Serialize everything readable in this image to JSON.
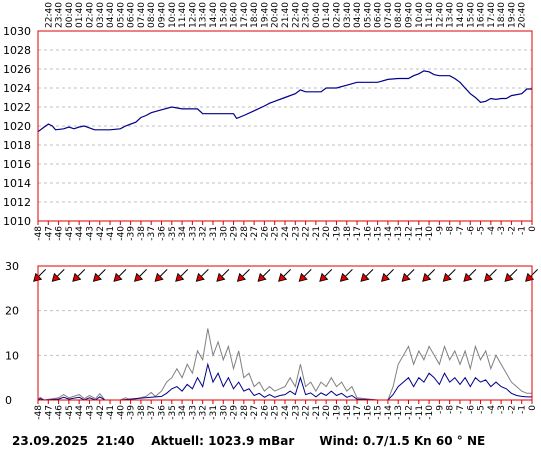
{
  "status": {
    "date": "23.09.2025",
    "time": "21:40",
    "aktuell": "Aktuell: 1023.9 mBar",
    "wind": "Wind: 0.7/1.5 Kn 60 ° NE"
  },
  "colors": {
    "frame": "#dd0000",
    "pressure_line": "#00008b",
    "wind_avg": "#00008b",
    "wind_gust": "#808080",
    "grid": "#c0c0c0",
    "arrow_fill": "#dd0000"
  },
  "chart_data": [
    {
      "type": "line",
      "name": "pressure",
      "ylim": [
        1010,
        1030
      ],
      "yticks": [
        "1030",
        "1028",
        "1026",
        "1024",
        "1022",
        "1020",
        "1018",
        "1016",
        "1014",
        "1012",
        "1010"
      ],
      "grid": true,
      "top_time_labels": [
        "22:40",
        "23:40",
        "00:40",
        "01:40",
        "02:40",
        "03:40",
        "04:40",
        "05:40",
        "06:40",
        "07:40",
        "08:40",
        "09:40",
        "10:40",
        "11:40",
        "12:40",
        "13:40",
        "14:40",
        "15:40",
        "16:40",
        "17:40",
        "18:40",
        "19:40",
        "20:40",
        "21:40",
        "22:40",
        "23:40",
        "00:40",
        "01:40",
        "02:40",
        "03:40",
        "04:40",
        "05:40",
        "06:40",
        "07:40",
        "08:40",
        "09:40",
        "10:40",
        "11:40",
        "12:40",
        "13:40",
        "14:40",
        "15:40",
        "16:40",
        "17:40",
        "18:40",
        "19:40",
        "20:40"
      ],
      "x_hour_labels": [
        "-48",
        "-47",
        "-46",
        "-45",
        "-44",
        "-43",
        "-42",
        "-41",
        "-40",
        "-39",
        "-38",
        "-37",
        "-36",
        "-35",
        "-34",
        "-33",
        "-32",
        "-31",
        "-30",
        "-29",
        "-28",
        "-27",
        "-26",
        "-25",
        "-24",
        "-23",
        "-22",
        "-21",
        "-20",
        "-19",
        "-18",
        "-17",
        "-16",
        "-15",
        "-14",
        "-13",
        "-12",
        "-11",
        "-10",
        "-9",
        "-8",
        "-7",
        "-6",
        "-5",
        "-4",
        "-3",
        "-2",
        "-1",
        "0"
      ],
      "points": [
        [
          -48,
          1019.4
        ],
        [
          -47.5,
          1019.8
        ],
        [
          -47,
          1020.2
        ],
        [
          -46.6,
          1020.0
        ],
        [
          -46.3,
          1019.6
        ],
        [
          -45.5,
          1019.7
        ],
        [
          -45,
          1019.9
        ],
        [
          -44.5,
          1019.7
        ],
        [
          -44,
          1019.9
        ],
        [
          -43.5,
          1020.0
        ],
        [
          -43,
          1019.8
        ],
        [
          -42.5,
          1019.6
        ],
        [
          -41,
          1019.6
        ],
        [
          -40,
          1019.7
        ],
        [
          -39.5,
          1020.0
        ],
        [
          -38.5,
          1020.4
        ],
        [
          -38,
          1020.9
        ],
        [
          -37.5,
          1021.1
        ],
        [
          -37,
          1021.4
        ],
        [
          -36,
          1021.7
        ],
        [
          -35,
          1022.0
        ],
        [
          -34,
          1021.8
        ],
        [
          -33,
          1021.8
        ],
        [
          -32.5,
          1021.8
        ],
        [
          -32,
          1021.3
        ],
        [
          -30,
          1021.3
        ],
        [
          -29,
          1021.3
        ],
        [
          -28.7,
          1020.8
        ],
        [
          -28,
          1021.1
        ],
        [
          -27,
          1021.6
        ],
        [
          -26,
          1022.1
        ],
        [
          -25.5,
          1022.4
        ],
        [
          -25,
          1022.6
        ],
        [
          -24,
          1023.0
        ],
        [
          -23,
          1023.4
        ],
        [
          -22.5,
          1023.8
        ],
        [
          -22,
          1023.6
        ],
        [
          -21,
          1023.6
        ],
        [
          -20.5,
          1023.6
        ],
        [
          -20,
          1024.0
        ],
        [
          -19,
          1024.0
        ],
        [
          -18,
          1024.3
        ],
        [
          -17,
          1024.6
        ],
        [
          -16,
          1024.6
        ],
        [
          -15,
          1024.6
        ],
        [
          -14,
          1024.9
        ],
        [
          -13,
          1025.0
        ],
        [
          -12,
          1025.0
        ],
        [
          -11.5,
          1025.3
        ],
        [
          -11,
          1025.5
        ],
        [
          -10.5,
          1025.8
        ],
        [
          -10,
          1025.7
        ],
        [
          -9.5,
          1025.4
        ],
        [
          -9,
          1025.3
        ],
        [
          -8,
          1025.3
        ],
        [
          -7.5,
          1025.0
        ],
        [
          -7,
          1024.6
        ],
        [
          -6.5,
          1024.0
        ],
        [
          -6,
          1023.4
        ],
        [
          -5.5,
          1023.0
        ],
        [
          -5,
          1022.5
        ],
        [
          -4.5,
          1022.6
        ],
        [
          -4,
          1022.9
        ],
        [
          -3.5,
          1022.8
        ],
        [
          -3,
          1022.9
        ],
        [
          -2.5,
          1022.9
        ],
        [
          -2,
          1023.2
        ],
        [
          -1,
          1023.4
        ],
        [
          -0.5,
          1023.9
        ],
        [
          0,
          1023.9
        ]
      ]
    },
    {
      "type": "line",
      "name": "wind",
      "ylim": [
        0,
        30
      ],
      "yticks": [
        "30",
        "20",
        "10",
        "0"
      ],
      "grid": true,
      "x_hour_labels": [
        "-48",
        "-47",
        "-46",
        "-45",
        "-44",
        "-43",
        "-42",
        "-41",
        "-40",
        "-39",
        "-38",
        "-37",
        "-36",
        "-35",
        "-34",
        "-33",
        "-32",
        "-31",
        "-30",
        "-29",
        "-28",
        "-27",
        "-26",
        "-25",
        "-24",
        "-23",
        "-22",
        "-21",
        "-20",
        "-19",
        "-18",
        "-17",
        "-16",
        "-15",
        "-14",
        "-13",
        "-12",
        "-11",
        "-10",
        "-9",
        "-8",
        "-7",
        "-6",
        "-5",
        "-4",
        "-3",
        "-2",
        "-1",
        "0"
      ],
      "gust": [
        [
          -48,
          0
        ],
        [
          -47.8,
          0.6
        ],
        [
          -47.4,
          0
        ],
        [
          -46,
          0.5
        ],
        [
          -45.5,
          1.2
        ],
        [
          -45,
          0.5
        ],
        [
          -44,
          1.2
        ],
        [
          -43.5,
          0.3
        ],
        [
          -43,
          1
        ],
        [
          -42.4,
          0.3
        ],
        [
          -42,
          1.4
        ],
        [
          -41.5,
          0
        ],
        [
          -40,
          0
        ],
        [
          -39.5,
          0.5
        ],
        [
          -39,
          0
        ],
        [
          -37.5,
          0.8
        ],
        [
          -37,
          1.7
        ],
        [
          -36.6,
          0.8
        ],
        [
          -36,
          2
        ],
        [
          -35.5,
          4
        ],
        [
          -35,
          5
        ],
        [
          -34.5,
          7
        ],
        [
          -34,
          5
        ],
        [
          -33.5,
          8
        ],
        [
          -33,
          6
        ],
        [
          -32.5,
          11
        ],
        [
          -32,
          9
        ],
        [
          -31.5,
          16
        ],
        [
          -31,
          10
        ],
        [
          -30.5,
          13
        ],
        [
          -30,
          9
        ],
        [
          -29.5,
          12
        ],
        [
          -29,
          7
        ],
        [
          -28.5,
          11
        ],
        [
          -28,
          5
        ],
        [
          -27.5,
          6
        ],
        [
          -27,
          3
        ],
        [
          -26.5,
          4
        ],
        [
          -26,
          2
        ],
        [
          -25.5,
          3
        ],
        [
          -25,
          2
        ],
        [
          -24.5,
          2.5
        ],
        [
          -24,
          3
        ],
        [
          -23.5,
          5
        ],
        [
          -23,
          3
        ],
        [
          -22.5,
          8
        ],
        [
          -22,
          3
        ],
        [
          -21.5,
          4
        ],
        [
          -21,
          2
        ],
        [
          -20.5,
          4
        ],
        [
          -20,
          3
        ],
        [
          -19.5,
          5
        ],
        [
          -19,
          3
        ],
        [
          -18.5,
          4
        ],
        [
          -18,
          2
        ],
        [
          -17.5,
          3
        ],
        [
          -17,
          0.5
        ],
        [
          -15,
          0
        ],
        [
          -14,
          0
        ],
        [
          -13.5,
          3
        ],
        [
          -13,
          8
        ],
        [
          -12.5,
          10
        ],
        [
          -12,
          12
        ],
        [
          -11.5,
          8
        ],
        [
          -11,
          11
        ],
        [
          -10.5,
          9
        ],
        [
          -10,
          12
        ],
        [
          -9.5,
          10
        ],
        [
          -9,
          8
        ],
        [
          -8.5,
          12
        ],
        [
          -8,
          9
        ],
        [
          -7.5,
          11
        ],
        [
          -7,
          8
        ],
        [
          -6.5,
          11
        ],
        [
          -6,
          7
        ],
        [
          -5.5,
          12
        ],
        [
          -5,
          9
        ],
        [
          -4.5,
          11
        ],
        [
          -4,
          7
        ],
        [
          -3.5,
          10
        ],
        [
          -3,
          8
        ],
        [
          -2.5,
          6
        ],
        [
          -2,
          4
        ],
        [
          -1.5,
          3
        ],
        [
          -1,
          2
        ],
        [
          -0.5,
          1.5
        ],
        [
          0,
          1.5
        ]
      ],
      "average": [
        [
          -48,
          0
        ],
        [
          -47.8,
          0.3
        ],
        [
          -47.4,
          0
        ],
        [
          -46,
          0.2
        ],
        [
          -45.5,
          0.6
        ],
        [
          -45,
          0.2
        ],
        [
          -44,
          0.6
        ],
        [
          -43.5,
          0
        ],
        [
          -43,
          0.5
        ],
        [
          -42.4,
          0
        ],
        [
          -42,
          0.7
        ],
        [
          -41.5,
          0
        ],
        [
          -40,
          0
        ],
        [
          -37,
          0.6
        ],
        [
          -36,
          0.8
        ],
        [
          -35.5,
          1.5
        ],
        [
          -35,
          2.5
        ],
        [
          -34.5,
          3
        ],
        [
          -34,
          2
        ],
        [
          -33.5,
          3.5
        ],
        [
          -33,
          2.5
        ],
        [
          -32.5,
          5
        ],
        [
          -32,
          3
        ],
        [
          -31.5,
          8
        ],
        [
          -31,
          4
        ],
        [
          -30.5,
          6
        ],
        [
          -30,
          3
        ],
        [
          -29.5,
          5
        ],
        [
          -29,
          2.5
        ],
        [
          -28.5,
          4
        ],
        [
          -28,
          2
        ],
        [
          -27.5,
          2.5
        ],
        [
          -27,
          1
        ],
        [
          -26.5,
          1.5
        ],
        [
          -26,
          0.6
        ],
        [
          -25.5,
          1.2
        ],
        [
          -25,
          0.6
        ],
        [
          -24.5,
          1
        ],
        [
          -24,
          1.2
        ],
        [
          -23.5,
          2
        ],
        [
          -23,
          1.2
        ],
        [
          -22.5,
          5
        ],
        [
          -22,
          1.2
        ],
        [
          -21.5,
          1.6
        ],
        [
          -21,
          0.7
        ],
        [
          -20.5,
          1.6
        ],
        [
          -20,
          1
        ],
        [
          -19.5,
          2
        ],
        [
          -19,
          1
        ],
        [
          -18.5,
          1.5
        ],
        [
          -18,
          0.6
        ],
        [
          -17.5,
          1
        ],
        [
          -17,
          0.2
        ],
        [
          -15,
          0
        ],
        [
          -14,
          0
        ],
        [
          -13.5,
          1.2
        ],
        [
          -13,
          3
        ],
        [
          -12.5,
          4
        ],
        [
          -12,
          5
        ],
        [
          -11.5,
          3
        ],
        [
          -11,
          5
        ],
        [
          -10.5,
          4
        ],
        [
          -10,
          6
        ],
        [
          -9.5,
          5
        ],
        [
          -9,
          3.5
        ],
        [
          -8.5,
          6
        ],
        [
          -8,
          4
        ],
        [
          -7.5,
          5
        ],
        [
          -7,
          3.5
        ],
        [
          -6.5,
          5
        ],
        [
          -6,
          3
        ],
        [
          -5.5,
          5
        ],
        [
          -5,
          4
        ],
        [
          -4.5,
          4.5
        ],
        [
          -4,
          3
        ],
        [
          -3.5,
          4
        ],
        [
          -3,
          3
        ],
        [
          -2.5,
          2.5
        ],
        [
          -2,
          1.5
        ],
        [
          -1.5,
          1
        ],
        [
          -1,
          0.8
        ],
        [
          -0.5,
          0.7
        ],
        [
          0,
          0.7
        ]
      ],
      "arrow_direction": "NE"
    }
  ]
}
